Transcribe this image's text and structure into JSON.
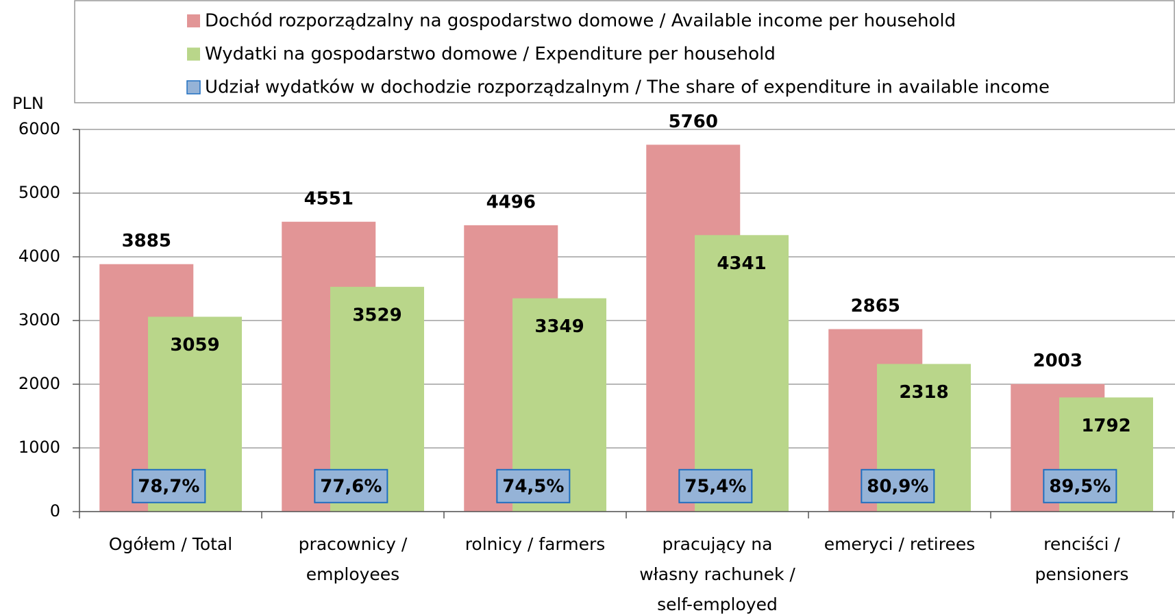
{
  "chart_data": {
    "type": "bar",
    "y_label": "PLN",
    "categories": [
      "Ogółem / Total",
      "pracownicy / employees",
      "rolnicy / farmers",
      "pracujący na własny rachunek / self-employed",
      "emeryci / retirees",
      "renciści / pensioners"
    ],
    "series": [
      {
        "name": "Dochód rozporządzalny na gospodarstwo domowe / Available income per household",
        "color": "#e29596",
        "values": [
          3885,
          4551,
          4496,
          5760,
          2865,
          2003
        ]
      },
      {
        "name": "Wydatki na gospodarstwo domowe / Expenditure per household",
        "color": "#b9d68a",
        "values": [
          3059,
          3529,
          3349,
          4341,
          2318,
          1792
        ]
      },
      {
        "name": "Udział wydatków w dochodzie rozporządzalnym / The share of expenditure in available income",
        "color": "#95b3d7",
        "values": [
          78.7,
          77.6,
          74.5,
          75.4,
          80.9,
          89.5
        ],
        "value_labels": [
          "78,7%",
          "77,6%",
          "74,5%",
          "75,4%",
          "80,9%",
          "89,5%"
        ]
      }
    ],
    "ylim": [
      0,
      6000
    ],
    "yticks": [
      0,
      1000,
      2000,
      3000,
      4000,
      5000,
      6000
    ],
    "grid": true
  }
}
